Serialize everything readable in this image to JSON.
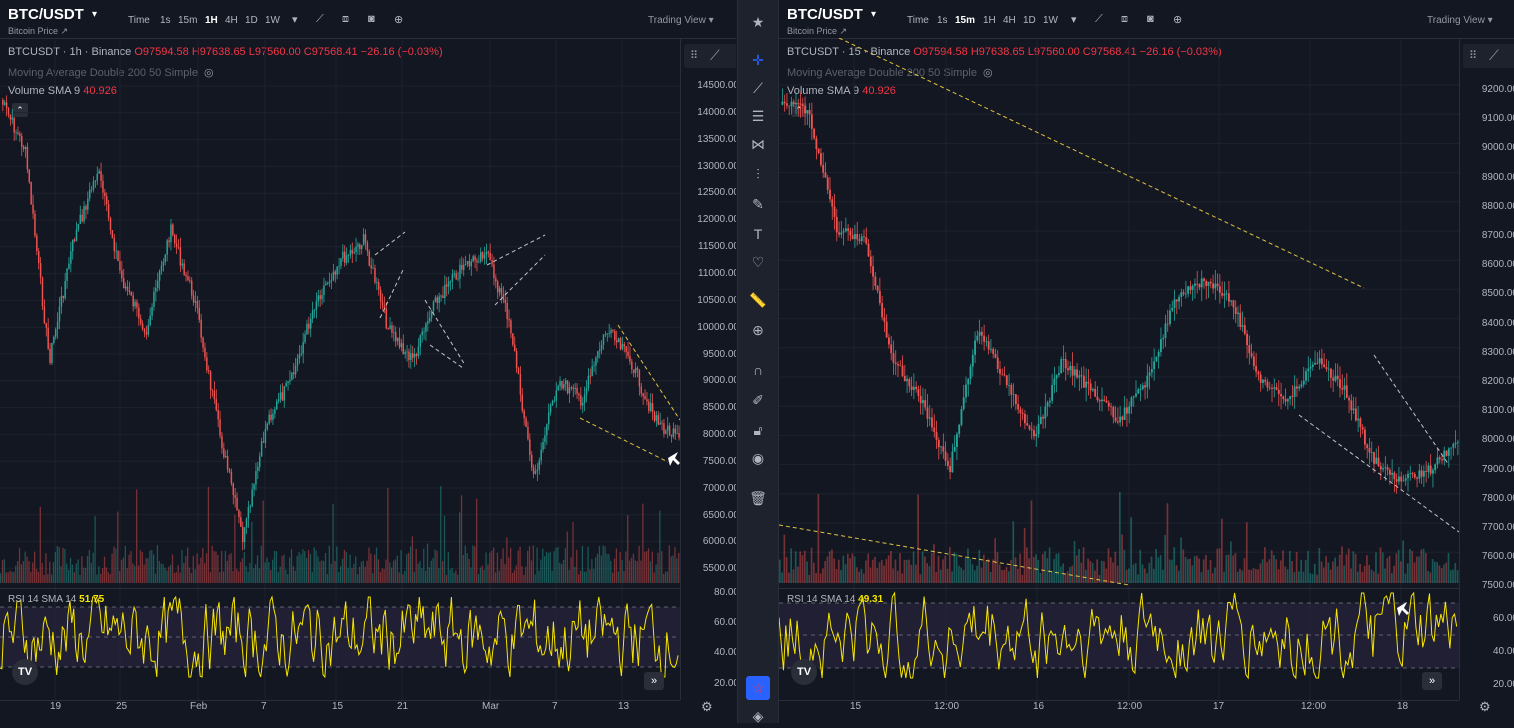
{
  "left": {
    "symbol": "BTC/USDT",
    "subtitle": "Bitcoin Price ↗",
    "timeframes": [
      "Time",
      "1s",
      "15m",
      "1H",
      "4H",
      "1D",
      "1W"
    ],
    "active_tf": "1H",
    "trading_view": "Trading View ▾",
    "legend_prefix": "BTCUSDT · 1h · Binance",
    "ohlc": "O97594.58 H97638.65 L97560.00 C97568.41 −26.16 (−0.03%)",
    "ma_label": "Moving Average Double 200 50 Simple",
    "vol_label": "Volume SMA 9",
    "vol_value": "40.926",
    "y_ticks": [
      "14500.00",
      "14000.00",
      "13500.00",
      "13000.00",
      "12500.00",
      "12000.00",
      "11500.00",
      "11000.00",
      "10500.00",
      "10000.00",
      "9500.00",
      "9000.00",
      "8500.00",
      "8000.00",
      "7500.00",
      "7000.00",
      "6500.00",
      "6000.00",
      "5500.00"
    ],
    "rsi_ticks": [
      "80.00",
      "60.00",
      "40.00",
      "20.00"
    ],
    "rsi_label": "RSI 14 SMA 14",
    "rsi_value": "51.75",
    "x_ticks": [
      "19",
      "25",
      "Feb",
      "7",
      "15",
      "21",
      "Mar",
      "7",
      "13"
    ]
  },
  "right": {
    "symbol": "BTC/USDT",
    "subtitle": "Bitcoin Price ↗",
    "timeframes": [
      "Time",
      "1s",
      "15m",
      "1H",
      "4H",
      "1D",
      "1W"
    ],
    "active_tf": "15m",
    "trading_view": "Trading View ▾",
    "legend_prefix": "BTCUSDT · 15 · Binance",
    "ohlc": "O97594.58 H97638.65 L97560.00 C97568.41 −26.16 (−0.03%)",
    "ma_label": "Moving Average Double 200 50 Simple",
    "vol_label": "Volume SMA 9",
    "vol_value": "40.926",
    "y_ticks": [
      "9200.00",
      "9100.00",
      "9000.00",
      "8900.00",
      "8800.00",
      "8700.00",
      "8600.00",
      "8500.00",
      "8400.00",
      "8300.00",
      "8200.00",
      "8100.00",
      "8000.00",
      "7900.00",
      "7800.00",
      "7700.00",
      "7600.00",
      "7500.00"
    ],
    "rsi_ticks": [
      "60.00",
      "40.00",
      "20.00"
    ],
    "rsi_label": "RSI 14 SMA 14",
    "rsi_value": "49.31",
    "x_ticks": [
      "15",
      "12:00",
      "16",
      "12:00",
      "17",
      "12:00",
      "18"
    ]
  },
  "logo_text": "TV",
  "colors": {
    "up": "#26a69a",
    "down": "#ef5350",
    "rsi": "#f7e600",
    "band": "#2a2440",
    "trend": "#e0c341",
    "pattern": "#c0c4cc"
  }
}
